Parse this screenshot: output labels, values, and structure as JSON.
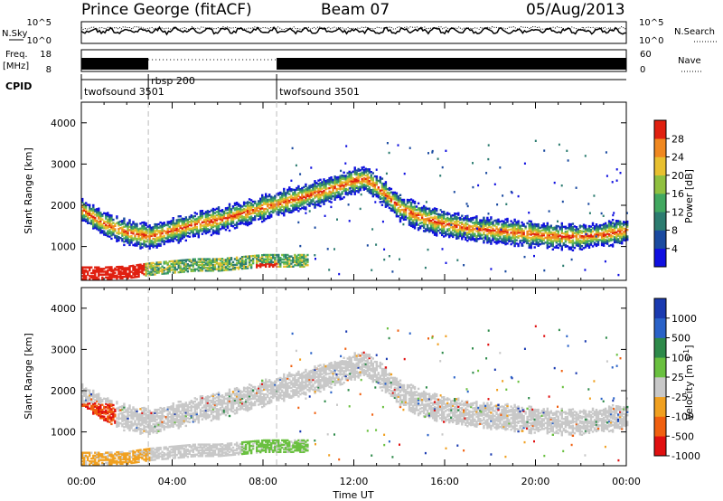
{
  "header": {
    "station": "Prince George (fitACF)",
    "beam": "Beam 07",
    "date": "05/Aug/2013"
  },
  "strip_labels": {
    "nsky": "N.Sky",
    "nsearch": "N.Search",
    "freq_line1": "Freq.",
    "freq_line2": "[MHz]",
    "nave": "Nave",
    "cpid": "CPID",
    "sky_ticks": [
      "10^5",
      "10^0"
    ],
    "freq_ticks": [
      "18",
      "8"
    ],
    "nave_ticks": [
      "60",
      "0"
    ]
  },
  "cpid_segments": [
    {
      "label": "twofsound 3501",
      "start_hour": 0,
      "end_hour": 2.95
    },
    {
      "label": "rbsp 200",
      "start_hour": 2.95,
      "end_hour": 8.6
    },
    {
      "label": "twofsound 3501",
      "start_hour": 8.6,
      "end_hour": 24
    }
  ],
  "panels": {
    "ylabel": "Slant Range [km]",
    "xlabel": "Time UT",
    "yticks": [
      "1000",
      "2000",
      "3000",
      "4000"
    ],
    "xticks": [
      "00:00",
      "04:00",
      "08:00",
      "12:00",
      "16:00",
      "20:00",
      "00:00"
    ]
  },
  "power_scale": {
    "label": "Power [dB]",
    "ticks": [
      "4",
      "8",
      "12",
      "16",
      "20",
      "24",
      "28"
    ],
    "colors": [
      "#1010e0",
      "#1a4aa0",
      "#2c7c70",
      "#42a860",
      "#90c040",
      "#e8c030",
      "#f08820",
      "#e02010"
    ]
  },
  "velocity_scale": {
    "label_main": "Velocity ",
    "label_unit": "[m s",
    "label_sup": "-1",
    "label_end": "]",
    "ticks": [
      "1000",
      "500",
      "100",
      "25",
      "-25",
      "-100",
      "-500",
      "-1000"
    ],
    "colors": [
      "#1a3ab0",
      "#2a62c8",
      "#2e8a4a",
      "#6ac040",
      "#c8c8c8",
      "#f0a020",
      "#f06010",
      "#e01010"
    ]
  },
  "chart_data": {
    "type": "heatmap",
    "title": "Prince George (fitACF)",
    "xlabel": "Time UT",
    "ylabel": "Slant Range [km]",
    "xlim_hours": [
      0,
      24
    ],
    "ylim_km": [
      180,
      4500
    ],
    "grid": false,
    "markers_hours": [
      2.95,
      8.6
    ],
    "echo_bands": [
      {
        "name": "",
        "x_hours": [
          0,
          1,
          2,
          3,
          4,
          5,
          6,
          7,
          8,
          9,
          10,
          11,
          12,
          12.5,
          13,
          14,
          15,
          16,
          17,
          18,
          19,
          20,
          21,
          22,
          23,
          24
        ],
        "range_km": [
          1900,
          1550,
          1350,
          1250,
          1400,
          1550,
          1650,
          1800,
          1950,
          2100,
          2250,
          2400,
          2600,
          2650,
          2450,
          1950,
          1700,
          1550,
          1450,
          1400,
          1350,
          1300,
          1250,
          1250,
          1300,
          1400
        ]
      },
      {
        "name": "",
        "x_hours": [
          0,
          1,
          2,
          3,
          4,
          5,
          6,
          7,
          8,
          9,
          10
        ],
        "range_km": [
          400,
          400,
          420,
          500,
          550,
          600,
          600,
          650,
          700,
          700,
          700
        ]
      }
    ],
    "power_db_range": [
      0,
      30
    ],
    "velocity_ms_range": [
      -1000,
      1000
    ]
  }
}
